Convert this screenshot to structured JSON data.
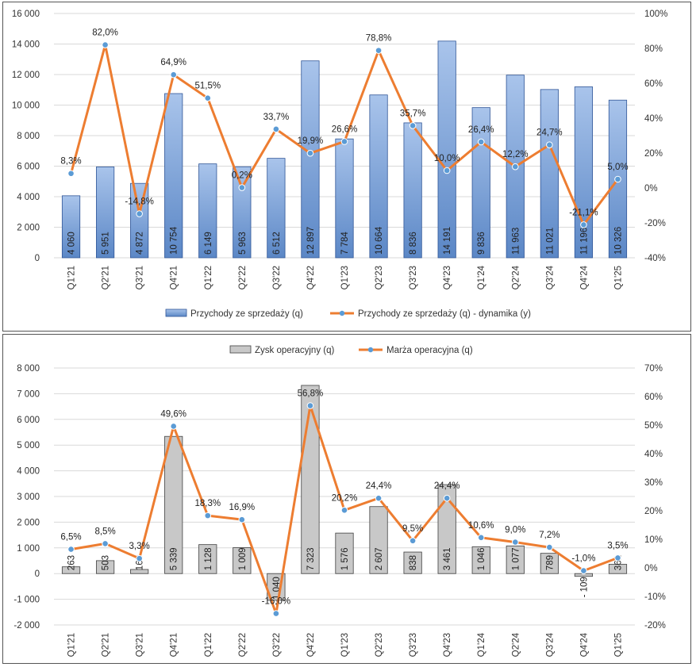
{
  "chart_data": [
    {
      "type": "bar+line",
      "categories": [
        "Q1'21",
        "Q2'21",
        "Q3'21",
        "Q4'21",
        "Q1'22",
        "Q2'22",
        "Q3'22",
        "Q4'22",
        "Q1'23",
        "Q2'23",
        "Q3'23",
        "Q4'23",
        "Q1'24",
        "Q2'24",
        "Q3'24",
        "Q4'24",
        "Q1'25"
      ],
      "series": [
        {
          "name": "Przychody ze sprzedaży (q)",
          "kind": "bar",
          "axis": "left",
          "values": [
            4060,
            5951,
            4872,
            10754,
            6149,
            5963,
            6512,
            12897,
            7784,
            10664,
            8836,
            14191,
            9836,
            11963,
            11021,
            11196,
            10326
          ],
          "labels": [
            "4 060",
            "5 951",
            "4 872",
            "10 754",
            "6 149",
            "5 963",
            "6 512",
            "12 897",
            "7 784",
            "10 664",
            "8 836",
            "14 191",
            "9 836",
            "11 963",
            "11 021",
            "11 196",
            "10 326"
          ]
        },
        {
          "name": "Przychody ze sprzedaży (q) - dynamika (y)",
          "kind": "line",
          "axis": "right",
          "values": [
            8.3,
            82.0,
            -14.8,
            64.9,
            51.5,
            0.2,
            33.7,
            19.9,
            26.6,
            78.8,
            35.7,
            10.0,
            26.4,
            12.2,
            24.7,
            -21.1,
            5.0
          ],
          "labels": [
            "8,3%",
            "82,0%",
            "-14,8%",
            "64,9%",
            "51,5%",
            "0,2%",
            "33,7%",
            "19,9%",
            "26,6%",
            "78,8%",
            "35,7%",
            "10,0%",
            "26,4%",
            "12,2%",
            "24,7%",
            "-21,1%",
            "5,0%"
          ]
        }
      ],
      "ylim": [
        0,
        16000
      ],
      "yticks": [
        "0",
        "2 000",
        "4 000",
        "6 000",
        "8 000",
        "10 000",
        "12 000",
        "14 000",
        "16 000"
      ],
      "y2lim": [
        -40,
        100
      ],
      "y2ticks": [
        "-40%",
        "-20%",
        "0%",
        "20%",
        "40%",
        "60%",
        "80%",
        "100%"
      ],
      "legend_position": "bottom",
      "grid": true,
      "colors": {
        "bar_top": "#a9c4eb",
        "bar_bottom": "#5b87c6",
        "bar_border": "#2f5597",
        "line": "#ed7d31",
        "marker": "#5b9bd5"
      }
    },
    {
      "type": "bar+line",
      "categories": [
        "Q1'21",
        "Q2'21",
        "Q3'21",
        "Q4'21",
        "Q1'22",
        "Q2'22",
        "Q3'22",
        "Q4'22",
        "Q1'23",
        "Q2'23",
        "Q3'23",
        "Q4'23",
        "Q1'24",
        "Q2'24",
        "Q3'24",
        "Q4'24",
        "Q1'25"
      ],
      "series": [
        {
          "name": "Zysk operacyjny (q)",
          "kind": "bar",
          "axis": "left",
          "values": [
            263,
            503,
            160,
            5339,
            1128,
            1009,
            -1040,
            7323,
            1576,
            2607,
            838,
            3461,
            1046,
            1077,
            789,
            -109,
            361
          ],
          "labels": [
            "263",
            "503",
            "160",
            "5 339",
            "1 128",
            "1 009",
            "-1 040",
            "7 323",
            "1 576",
            "2 607",
            "838",
            "3 461",
            "1 046",
            "1 077",
            "789",
            "- 109",
            "361"
          ]
        },
        {
          "name": "Marża operacyjna (q)",
          "kind": "line",
          "axis": "right",
          "values": [
            6.5,
            8.5,
            3.3,
            49.6,
            18.3,
            16.9,
            -16.0,
            56.8,
            20.2,
            24.4,
            9.5,
            24.4,
            10.6,
            9.0,
            7.2,
            -1.0,
            3.5
          ],
          "labels": [
            "6,5%",
            "8,5%",
            "3,3%",
            "49,6%",
            "18,3%",
            "16,9%",
            "-16,0%",
            "56,8%",
            "20,2%",
            "24,4%",
            "9,5%",
            "24,4%",
            "10,6%",
            "9,0%",
            "7,2%",
            "-1,0%",
            "3,5%"
          ]
        }
      ],
      "ylim": [
        -2000,
        8000
      ],
      "yticks": [
        "-2 000",
        "-1 000",
        "0",
        "1 000",
        "2 000",
        "3 000",
        "4 000",
        "5 000",
        "6 000",
        "7 000",
        "8 000"
      ],
      "y2lim": [
        -20,
        70
      ],
      "y2ticks": [
        "-20%",
        "-10%",
        "0%",
        "10%",
        "20%",
        "30%",
        "40%",
        "50%",
        "60%",
        "70%"
      ],
      "legend_position": "top",
      "grid": true,
      "colors": {
        "bar_fill": "#c8c8c8",
        "bar_border": "#404040",
        "line": "#ed7d31",
        "marker": "#5b9bd5"
      }
    }
  ]
}
